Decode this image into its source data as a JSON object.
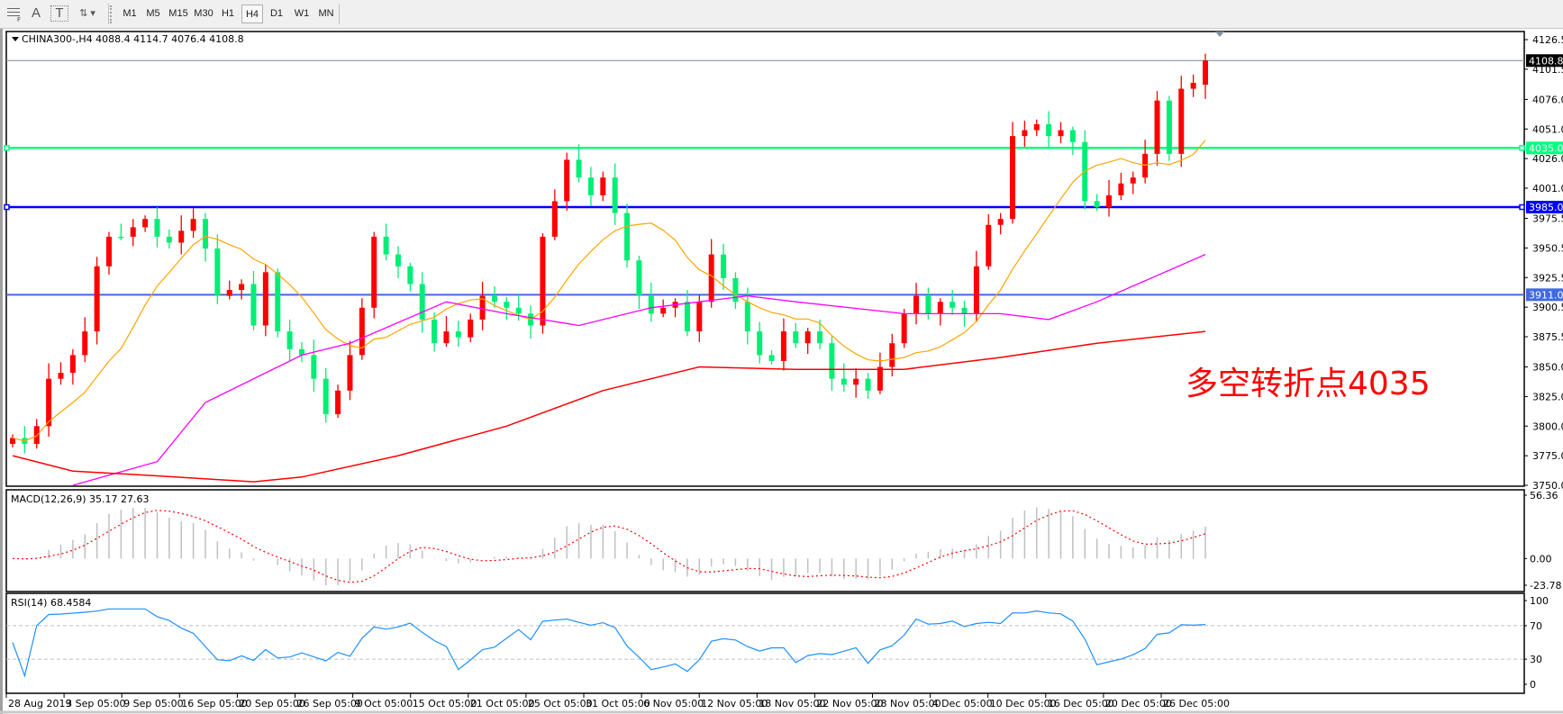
{
  "toolbar": {
    "icons": [
      "period-separator-icon",
      "text-label-icon",
      "text-box-icon",
      "arrows-icon"
    ],
    "text_icon": "A",
    "textbox_icon": "T",
    "timeframes": [
      "M1",
      "M5",
      "M15",
      "M30",
      "H1",
      "H4",
      "D1",
      "W1",
      "MN"
    ],
    "active_timeframe": "H4"
  },
  "main_panel": {
    "title": "CHINA300-,H4  4088.4 4114.7 4076.4 4108.8",
    "price_ticks": [
      "4126.5",
      "4101.5",
      "4076.0",
      "4051.0",
      "4026.0",
      "4001.0",
      "3975.5",
      "3950.5",
      "3925.5",
      "3900.5",
      "3875.5",
      "3850.0",
      "3825.0",
      "3800.0",
      "3775.0",
      "3750.0"
    ],
    "current_price": "4108.8",
    "hlines": [
      {
        "label": "4035.0",
        "price": 4035.0,
        "color": "#00ff7f"
      },
      {
        "label": "3985.0",
        "price": 3985.0,
        "color": "#0000ff"
      },
      {
        "label": "3911.0",
        "price": 3911.0,
        "color": "#4169e1"
      }
    ],
    "annotation": "多空转折点4035",
    "annotation_color": "#ff0000"
  },
  "macd_panel": {
    "title": "MACD(12,26,9) 35.17 27.63",
    "ticks": [
      "56.36",
      "0.00",
      "-23.78"
    ],
    "range": [
      -23.78,
      56.36
    ]
  },
  "rsi_panel": {
    "title": "RSI(14) 68.4584",
    "ticks": [
      "100",
      "70",
      "30",
      "0"
    ],
    "levels": [
      70,
      30
    ]
  },
  "time_axis": [
    "28 Aug 2019",
    "3 Sep 05:00",
    "9 Sep 05:00",
    "16 Sep 05:00",
    "20 Sep 05:00",
    "26 Sep 05:00",
    "9 Oct 05:00",
    "15 Oct 05:00",
    "21 Oct 05:00",
    "25 Oct 05:00",
    "31 Oct 05:00",
    "6 Nov 05:00",
    "12 Nov 05:00",
    "18 Nov 05:00",
    "22 Nov 05:00",
    "28 Nov 05:00",
    "4 Dec 05:00",
    "10 Dec 05:00",
    "16 Dec 05:00",
    "20 Dec 05:00",
    "26 Dec 05:00"
  ],
  "chart_data": {
    "type": "candlestick",
    "symbol": "CHINA300-",
    "timeframe": "H4",
    "ylim": [
      3750.0,
      4126.5
    ],
    "bull_color": "#ff0000",
    "bear_color": "#00ee76",
    "last_ohlc": [
      4088.4,
      4114.7,
      4076.4,
      4108.8
    ],
    "closes": [
      3790,
      3785,
      3800,
      3840,
      3845,
      3860,
      3880,
      3935,
      3960,
      3960,
      3968,
      3975,
      3960,
      3955,
      3965,
      3975,
      3950,
      3910,
      3915,
      3920,
      3885,
      3930,
      3880,
      3865,
      3860,
      3840,
      3810,
      3830,
      3860,
      3900,
      3960,
      3945,
      3935,
      3920,
      3890,
      3870,
      3880,
      3875,
      3890,
      3910,
      3905,
      3900,
      3895,
      3885,
      3960,
      3990,
      4025,
      4010,
      3995,
      4010,
      3980,
      3940,
      3910,
      3895,
      3900,
      3905,
      3880,
      3905,
      3945,
      3925,
      3905,
      3880,
      3860,
      3855,
      3880,
      3870,
      3880,
      3870,
      3840,
      3835,
      3840,
      3830,
      3850,
      3870,
      3895,
      3910,
      3895,
      3905,
      3900,
      3895,
      3935,
      3970,
      3975,
      4045,
      4050,
      4055,
      4045,
      4050,
      4040,
      3990,
      3985,
      3995,
      4005,
      4010,
      4030,
      4075,
      4030,
      4085,
      4090,
      4108.8
    ],
    "ma_fast_color": "#ffa500",
    "ma_mid": {
      "color": "#ff00ff",
      "points": [
        [
          5,
          3750
        ],
        [
          12,
          3770
        ],
        [
          16,
          3820
        ],
        [
          24,
          3860
        ],
        [
          28,
          3870
        ],
        [
          36,
          3905
        ],
        [
          41,
          3895
        ],
        [
          47,
          3885
        ],
        [
          53,
          3900
        ],
        [
          61,
          3910
        ],
        [
          65,
          3905
        ],
        [
          74,
          3895
        ],
        [
          82,
          3895
        ],
        [
          86,
          3890
        ],
        [
          90,
          3905
        ],
        [
          99,
          3945
        ]
      ]
    },
    "ma_slow": {
      "color": "#ff0000",
      "points": [
        [
          0,
          3775
        ],
        [
          5,
          3762
        ],
        [
          12,
          3758
        ],
        [
          20,
          3753
        ],
        [
          24,
          3757
        ],
        [
          32,
          3775
        ],
        [
          41,
          3800
        ],
        [
          49,
          3830
        ],
        [
          57,
          3850
        ],
        [
          65,
          3848
        ],
        [
          74,
          3848
        ],
        [
          82,
          3858
        ],
        [
          90,
          3870
        ],
        [
          99,
          3880
        ]
      ]
    },
    "macd_hist_color": "#c0c0c0",
    "macd_signal_color": "#ff0000",
    "rsi_color": "#1e90ff"
  }
}
